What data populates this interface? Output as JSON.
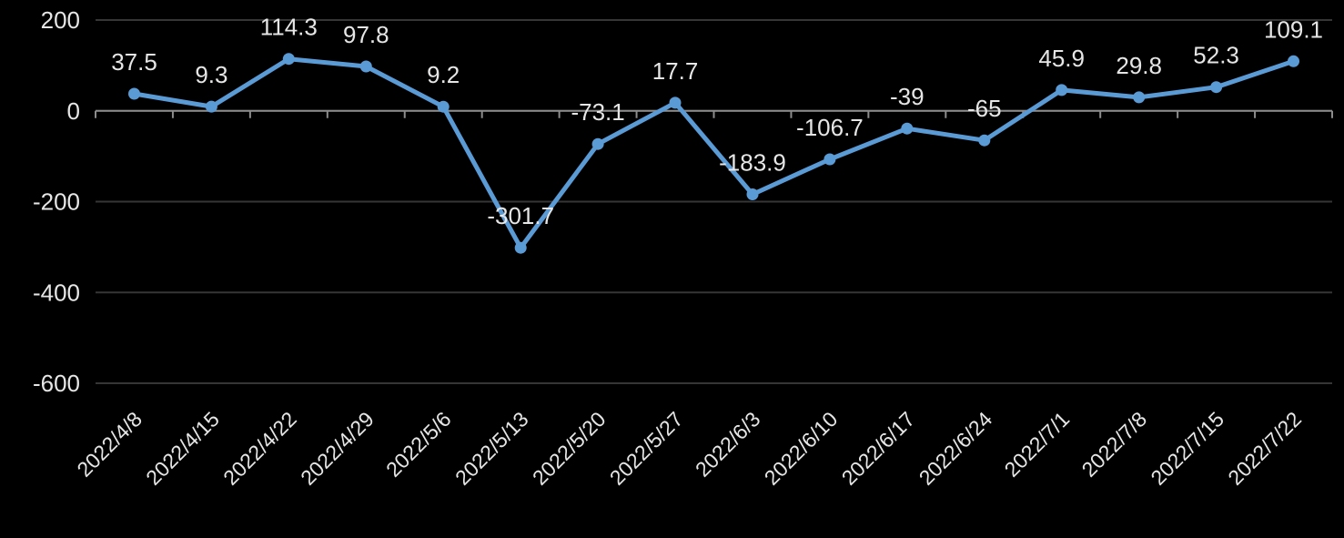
{
  "chart_data": {
    "type": "line",
    "title": "",
    "categories": [
      "2022/4/8",
      "2022/4/15",
      "2022/4/22",
      "2022/4/29",
      "2022/5/6",
      "2022/5/13",
      "2022/5/20",
      "2022/5/27",
      "2022/6/3",
      "2022/6/10",
      "2022/6/17",
      "2022/6/24",
      "2022/7/1",
      "2022/7/8",
      "2022/7/15",
      "2022/7/22"
    ],
    "values": [
      37.5,
      9.3,
      114.3,
      97.8,
      9.2,
      -301.7,
      -73.1,
      17.7,
      -183.9,
      -106.7,
      -39,
      -65,
      45.9,
      29.8,
      52.3,
      109.1
    ],
    "data_labels": [
      "37.5",
      "9.3",
      "114.3",
      "97.8",
      "9.2",
      "-301.7",
      "-73.1",
      "17.7",
      "-183.9",
      "-106.7",
      "-39",
      "-65",
      "45.9",
      "29.8",
      "52.3",
      "109.1"
    ],
    "xlabel": "",
    "ylabel": "",
    "ylim": [
      -600,
      200
    ],
    "yticks": [
      200,
      0,
      -200,
      -400,
      -600
    ],
    "grid": true,
    "legend_position": "none",
    "marker": "circle",
    "colors": {
      "background": "#000000",
      "series": "#5b9bd5",
      "gridline": "#363636",
      "axis": "#8c8c8c",
      "text": "#e6e6e6"
    }
  }
}
